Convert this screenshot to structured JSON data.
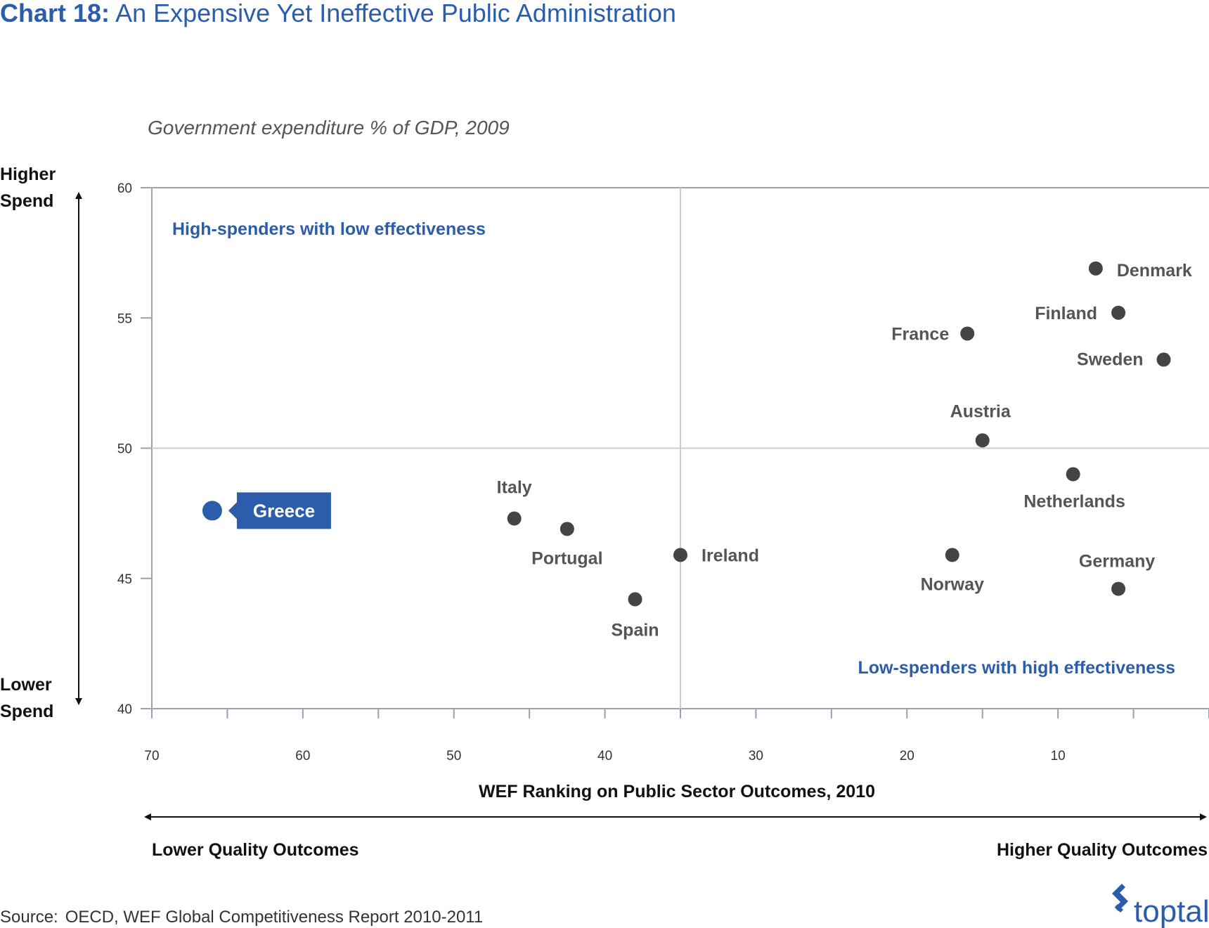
{
  "header": {
    "title_prefix": "Chart 18:",
    "title_rest": " An Expensive Yet Ineffective Public Administration"
  },
  "footer": {
    "source_label": "Source:",
    "source_text": "OECD, WEF Global Competitiveness Report 2010-2011",
    "logo_text": "toptal"
  },
  "colors": {
    "highlight": "#2b5dab",
    "point": "#444444",
    "grid": "#c8cdd3",
    "axis": "#9aa3ad"
  },
  "chart_data": {
    "type": "scatter",
    "title": "Chart 18: An Expensive Yet Ineffective Public Administration",
    "ylabel": "Government expenditure % of GDP, 2009",
    "xlabel": "WEF Ranking on Public Sector Outcomes, 2010",
    "xlim": [
      70,
      0
    ],
    "ylim": [
      40,
      60
    ],
    "x_reversed": true,
    "xticks": [
      70,
      60,
      50,
      40,
      30,
      20,
      10
    ],
    "yticks": [
      60,
      55,
      50,
      45,
      40
    ],
    "y_direction": {
      "top": "Higher Spend",
      "bottom": "Lower Spend"
    },
    "x_direction": {
      "left": "Lower Quality Outcomes",
      "right": "Higher Quality Outcomes"
    },
    "quadrants": {
      "top_left": "High-spenders with low effectiveness",
      "bottom_right": "Low-spenders with high effectiveness"
    },
    "divider": {
      "x": 35,
      "y": 50
    },
    "grid": false,
    "points": [
      {
        "name": "Greece",
        "x": 66,
        "y": 47.6,
        "highlight": true
      },
      {
        "name": "Italy",
        "x": 46,
        "y": 47.3
      },
      {
        "name": "Portugal",
        "x": 42.5,
        "y": 46.9
      },
      {
        "name": "Ireland",
        "x": 35,
        "y": 45.9
      },
      {
        "name": "Spain",
        "x": 38,
        "y": 44.2
      },
      {
        "name": "France",
        "x": 16,
        "y": 54.4
      },
      {
        "name": "Austria",
        "x": 15,
        "y": 50.3
      },
      {
        "name": "Norway",
        "x": 17,
        "y": 45.9
      },
      {
        "name": "Denmark",
        "x": 7.5,
        "y": 56.9
      },
      {
        "name": "Finland",
        "x": 6,
        "y": 55.2
      },
      {
        "name": "Sweden",
        "x": 3,
        "y": 53.4
      },
      {
        "name": "Netherlands",
        "x": 9,
        "y": 49.0
      },
      {
        "name": "Germany",
        "x": 6,
        "y": 44.6
      }
    ]
  }
}
